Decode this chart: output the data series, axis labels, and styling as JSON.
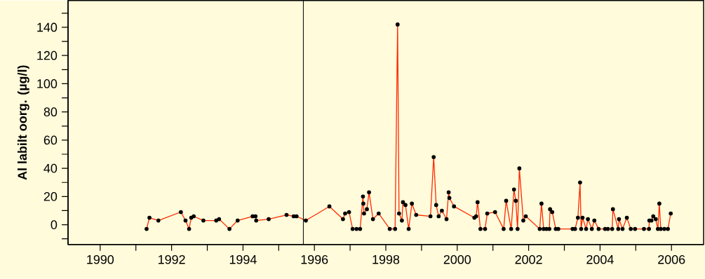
{
  "chart_data": {
    "type": "line",
    "ylabel": "Al labilt oorg.  (µg/l)",
    "xlim": [
      1989.1,
      2006.9
    ],
    "ylim": [
      -14,
      159
    ],
    "xticks": [
      1990,
      {
        "value": 1991,
        "label": null
      },
      1992,
      {
        "value": 1993,
        "label": null
      },
      1994,
      {
        "value": 1995,
        "label": null
      },
      1996,
      {
        "value": 1997,
        "label": null
      },
      1998,
      {
        "value": 1999,
        "label": null
      },
      2000,
      {
        "value": 2001,
        "label": null
      },
      2002,
      {
        "value": 2003,
        "label": null
      },
      2004,
      {
        "value": 2005,
        "label": null
      },
      2006
    ],
    "yticks": [
      {
        "value": -10,
        "label": null
      },
      0,
      {
        "value": 10,
        "label": null
      },
      20,
      {
        "value": 30,
        "label": null
      },
      40,
      {
        "value": 50,
        "label": null
      },
      60,
      {
        "value": 70,
        "label": null
      },
      80,
      {
        "value": 90,
        "label": null
      },
      100,
      {
        "value": 110,
        "label": null
      },
      120,
      {
        "value": 130,
        "label": null
      },
      140,
      {
        "value": 150,
        "label": null
      }
    ],
    "marker": "circle",
    "line_style": "solid",
    "ref_lines": [
      {
        "axis": "x",
        "value": 1995.69,
        "color": "#000000"
      }
    ],
    "series": [
      {
        "color": "#ff2a00",
        "x": [
          1991.3,
          1991.38,
          1991.63,
          1992.26,
          1992.39,
          1992.49,
          1992.55,
          1992.62,
          1992.89,
          1993.25,
          1993.33,
          1993.62,
          1993.85,
          1994.27,
          1994.35,
          1994.37,
          1994.72,
          1995.22,
          1995.42,
          1995.5,
          1995.76,
          1996.42,
          1996.8,
          1996.86,
          1996.97,
          1997.07,
          1997.18,
          1997.28,
          1997.36,
          1997.37,
          1997.39,
          1997.47,
          1997.53,
          1997.64,
          1997.8,
          1998.11,
          1998.26,
          1998.33,
          1998.37,
          1998.45,
          1998.48,
          1998.55,
          1998.64,
          1998.73,
          1998.85,
          1999.25,
          1999.34,
          1999.41,
          1999.48,
          1999.57,
          1999.7,
          1999.76,
          1999.78,
          1999.91,
          2000.48,
          2000.53,
          2000.57,
          2000.65,
          2000.78,
          2000.84,
          2001.06,
          2001.3,
          2001.37,
          2001.51,
          2001.59,
          2001.64,
          2001.69,
          2001.74,
          2001.85,
          2001.92,
          2002.31,
          2002.36,
          2002.42,
          2002.5,
          2002.58,
          2002.6,
          2002.66,
          2002.76,
          2002.83,
          2003.23,
          2003.3,
          2003.38,
          2003.44,
          2003.47,
          2003.51,
          2003.61,
          2003.66,
          2003.77,
          2003.84,
          2003.96,
          2004.14,
          2004.22,
          2004.34,
          2004.36,
          2004.51,
          2004.53,
          2004.63,
          2004.75,
          2004.86,
          2004.98,
          2005.23,
          2005.37,
          2005.38,
          2005.44,
          2005.49,
          2005.56,
          2005.62,
          2005.66,
          2005.7,
          2005.8,
          2005.9,
          2005.98
        ],
        "values": [
          -3,
          5,
          3,
          9,
          3,
          -3,
          5,
          6,
          3,
          3,
          4,
          -3,
          3,
          6,
          6,
          3,
          4,
          7,
          6,
          6,
          3,
          13,
          4,
          8,
          9,
          -3,
          -3,
          -3,
          20,
          15,
          8,
          11,
          23,
          4,
          8,
          -3,
          -3,
          142,
          8,
          3,
          16,
          14,
          -3,
          15,
          7,
          6,
          48,
          14,
          6,
          10,
          4,
          23,
          19,
          13,
          5,
          6,
          16,
          -3,
          -3,
          8,
          9,
          -3,
          17,
          -3,
          25,
          17,
          -3,
          40,
          3,
          6,
          -3,
          15,
          -3,
          -3,
          -3,
          11,
          9,
          -3,
          -3,
          -3,
          -3,
          5,
          30,
          -3,
          5,
          -3,
          4,
          -3,
          3,
          -3,
          -3,
          -3,
          -3,
          11,
          -3,
          4,
          -3,
          5,
          -3,
          -3,
          -3,
          -3,
          3,
          3,
          6,
          4,
          -3,
          15,
          -3,
          -3,
          -3,
          8
        ]
      }
    ]
  }
}
